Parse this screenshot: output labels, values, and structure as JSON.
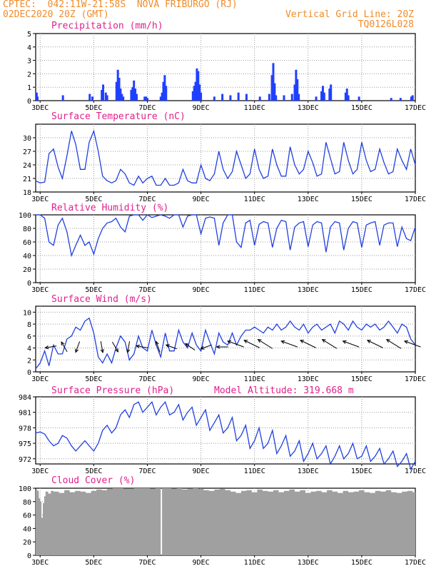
{
  "header": {
    "line1": "CPTEC:  042:11W-21:58S  NOVA FRIBURGO (RJ)",
    "line2_left": "02DEC2020 20Z (GMT)",
    "line2_right": "Vertical Grid Line: 20Z",
    "line3_right": "TQ0126L028"
  },
  "colors": {
    "header": "#f08c28",
    "title": "#e0208c",
    "series": "#2040e0",
    "bar": "#2040ff",
    "cloud": "#a0a0a0",
    "grid": "#999999"
  },
  "x_axis": {
    "start_day": 2.8333,
    "end_day": 17.0,
    "labels": [
      "3DEC",
      "5DEC",
      "7DEC",
      "9DEC",
      "11DEC",
      "13DEC",
      "15DEC",
      "17DEC"
    ],
    "label_days": [
      3,
      5,
      7,
      9,
      11,
      13,
      15,
      17
    ]
  },
  "chart_data": [
    {
      "type": "bar",
      "id": "precip",
      "title": "Precipitation (mm/h)",
      "ylim": [
        0,
        5
      ],
      "yticks": [
        0,
        1,
        2,
        3,
        4,
        5
      ],
      "x": [
        2.87,
        2.9,
        3.85,
        4.85,
        4.95,
        5.3,
        5.35,
        5.45,
        5.5,
        5.85,
        5.9,
        5.95,
        6.0,
        6.05,
        6.1,
        6.4,
        6.45,
        6.5,
        6.55,
        6.6,
        6.9,
        6.95,
        7.0,
        7.5,
        7.55,
        7.6,
        7.65,
        7.7,
        8.7,
        8.75,
        8.8,
        8.85,
        8.9,
        8.95,
        9.0,
        9.5,
        9.8,
        10.1,
        10.4,
        10.7,
        11.2,
        11.55,
        11.65,
        11.7,
        11.75,
        11.8,
        12.1,
        12.4,
        12.5,
        12.55,
        12.6,
        12.65,
        13.3,
        13.5,
        13.55,
        13.6,
        13.8,
        13.85,
        14.4,
        14.45,
        14.5,
        14.9,
        16.1,
        16.45,
        16.85,
        16.9
      ],
      "values": [
        0.6,
        0.3,
        0.4,
        0.5,
        0.3,
        0.8,
        1.2,
        0.6,
        0.4,
        1.4,
        2.3,
        1.7,
        0.9,
        0.5,
        0.3,
        0.8,
        1.0,
        1.5,
        0.9,
        0.5,
        0.3,
        0.3,
        0.2,
        0.3,
        0.6,
        1.4,
        1.9,
        1.1,
        0.7,
        1.1,
        1.4,
        2.4,
        2.2,
        1.2,
        0.6,
        0.3,
        0.5,
        0.4,
        0.6,
        0.5,
        0.3,
        0.5,
        1.9,
        2.8,
        1.3,
        0.4,
        0.4,
        0.5,
        1.2,
        2.3,
        1.6,
        0.5,
        0.3,
        0.7,
        1.1,
        0.6,
        0.9,
        1.2,
        0.6,
        0.9,
        0.4,
        0.3,
        0.2,
        0.2,
        0.3,
        0.4
      ]
    },
    {
      "type": "line",
      "id": "temp",
      "title": "Surface Temperature (nC)",
      "ylim": [
        18,
        33
      ],
      "yticks": [
        18,
        21,
        24,
        27,
        30
      ],
      "x": [
        2.83,
        3.0,
        3.17,
        3.33,
        3.5,
        3.67,
        3.83,
        4.0,
        4.17,
        4.33,
        4.5,
        4.67,
        4.83,
        5.0,
        5.17,
        5.33,
        5.5,
        5.67,
        5.83,
        6.0,
        6.17,
        6.33,
        6.5,
        6.67,
        6.83,
        7.0,
        7.17,
        7.33,
        7.5,
        7.67,
        7.83,
        8.0,
        8.17,
        8.33,
        8.5,
        8.67,
        8.83,
        9.0,
        9.17,
        9.33,
        9.5,
        9.67,
        9.83,
        10.0,
        10.17,
        10.33,
        10.5,
        10.67,
        10.83,
        11.0,
        11.17,
        11.33,
        11.5,
        11.67,
        11.83,
        12.0,
        12.17,
        12.33,
        12.5,
        12.67,
        12.83,
        13.0,
        13.17,
        13.33,
        13.5,
        13.67,
        13.83,
        14.0,
        14.17,
        14.33,
        14.5,
        14.67,
        14.83,
        15.0,
        15.17,
        15.33,
        15.5,
        15.67,
        15.83,
        16.0,
        16.17,
        16.33,
        16.5,
        16.67,
        16.83,
        17.0
      ],
      "values": [
        20.5,
        20.0,
        20.2,
        26.5,
        27.5,
        23.5,
        21.0,
        26.0,
        31.5,
        28.5,
        23.0,
        23.0,
        29.0,
        31.5,
        27.0,
        21.5,
        20.5,
        20.0,
        20.5,
        23.0,
        22.0,
        20.0,
        19.5,
        21.5,
        20.0,
        21.0,
        21.5,
        19.5,
        19.5,
        21.0,
        19.5,
        19.5,
        20.0,
        23.0,
        20.5,
        20.0,
        20.0,
        24.0,
        21.0,
        20.5,
        22.0,
        27.0,
        23.0,
        21.0,
        22.5,
        27.0,
        24.0,
        21.0,
        22.0,
        27.5,
        23.0,
        21.0,
        21.5,
        27.5,
        24.0,
        21.5,
        21.5,
        28.0,
        24.0,
        22.0,
        23.0,
        27.0,
        24.5,
        21.5,
        22.0,
        29.0,
        25.5,
        22.0,
        22.5,
        29.0,
        25.0,
        22.0,
        23.0,
        29.0,
        25.0,
        22.5,
        23.0,
        27.5,
        24.5,
        22.0,
        22.5,
        27.5,
        25.0,
        23.0,
        27.5,
        24.0
      ]
    },
    {
      "type": "line",
      "id": "rh",
      "title": "Relative Humidity (%)",
      "ylim": [
        0,
        100
      ],
      "yticks": [
        0,
        20,
        40,
        60,
        80,
        100
      ],
      "x": [
        2.83,
        3.0,
        3.17,
        3.33,
        3.5,
        3.67,
        3.83,
        4.0,
        4.17,
        4.33,
        4.5,
        4.67,
        4.83,
        5.0,
        5.17,
        5.33,
        5.5,
        5.67,
        5.83,
        6.0,
        6.17,
        6.33,
        6.5,
        6.67,
        6.83,
        7.0,
        7.17,
        7.33,
        7.5,
        7.67,
        7.83,
        8.0,
        8.17,
        8.33,
        8.5,
        8.67,
        8.83,
        9.0,
        9.17,
        9.33,
        9.5,
        9.67,
        9.83,
        10.0,
        10.17,
        10.33,
        10.5,
        10.67,
        10.83,
        11.0,
        11.17,
        11.33,
        11.5,
        11.67,
        11.83,
        12.0,
        12.17,
        12.33,
        12.5,
        12.67,
        12.83,
        13.0,
        13.17,
        13.33,
        13.5,
        13.67,
        13.83,
        14.0,
        14.17,
        14.33,
        14.5,
        14.67,
        14.83,
        15.0,
        15.17,
        15.33,
        15.5,
        15.67,
        15.83,
        16.0,
        16.17,
        16.33,
        16.5,
        16.67,
        16.83,
        17.0
      ],
      "values": [
        100,
        100,
        95,
        60,
        55,
        85,
        95,
        75,
        40,
        55,
        70,
        55,
        60,
        42,
        65,
        80,
        88,
        90,
        95,
        82,
        75,
        98,
        100,
        100,
        92,
        100,
        96,
        98,
        100,
        98,
        95,
        100,
        100,
        82,
        98,
        100,
        100,
        72,
        95,
        97,
        95,
        55,
        88,
        100,
        100,
        60,
        52,
        88,
        92,
        55,
        86,
        90,
        88,
        52,
        80,
        92,
        90,
        48,
        82,
        88,
        90,
        53,
        85,
        90,
        88,
        45,
        82,
        90,
        88,
        48,
        80,
        90,
        88,
        52,
        85,
        88,
        90,
        55,
        85,
        88,
        88,
        53,
        82,
        65,
        62,
        82
      ]
    },
    {
      "type": "line",
      "id": "wind",
      "title": "Surface Wind (m/s)",
      "ylim": [
        0,
        11
      ],
      "yticks": [
        0,
        2,
        4,
        6,
        8,
        10
      ],
      "x": [
        2.83,
        3.0,
        3.17,
        3.33,
        3.5,
        3.67,
        3.83,
        4.0,
        4.17,
        4.33,
        4.5,
        4.67,
        4.83,
        5.0,
        5.17,
        5.33,
        5.5,
        5.67,
        5.83,
        6.0,
        6.17,
        6.33,
        6.5,
        6.67,
        6.83,
        7.0,
        7.17,
        7.33,
        7.5,
        7.67,
        7.83,
        8.0,
        8.17,
        8.33,
        8.5,
        8.67,
        8.83,
        9.0,
        9.17,
        9.33,
        9.5,
        9.67,
        9.83,
        10.0,
        10.17,
        10.33,
        10.5,
        10.67,
        10.83,
        11.0,
        11.17,
        11.33,
        11.5,
        11.67,
        11.83,
        12.0,
        12.17,
        12.33,
        12.5,
        12.67,
        12.83,
        13.0,
        13.17,
        13.33,
        13.5,
        13.67,
        13.83,
        14.0,
        14.17,
        14.33,
        14.5,
        14.67,
        14.83,
        15.0,
        15.17,
        15.33,
        15.5,
        15.67,
        15.83,
        16.0,
        16.17,
        16.33,
        16.5,
        16.67,
        16.83,
        17.0
      ],
      "values": [
        0.5,
        1.5,
        3.5,
        1.0,
        4.5,
        3.0,
        3.0,
        5.5,
        6.0,
        7.5,
        7.0,
        8.5,
        9.0,
        6.5,
        2.5,
        1.5,
        3.0,
        1.5,
        4.0,
        6.0,
        5.0,
        2.0,
        3.0,
        6.0,
        4.0,
        3.5,
        7.0,
        4.5,
        2.5,
        6.5,
        3.5,
        3.5,
        7.0,
        5.0,
        4.0,
        6.5,
        4.5,
        3.5,
        7.0,
        5.0,
        3.0,
        6.5,
        5.0,
        4.5,
        6.5,
        4.5,
        6.0,
        7.0,
        7.0,
        7.5,
        7.0,
        6.5,
        7.5,
        7.0,
        8.0,
        7.0,
        7.5,
        8.5,
        7.5,
        7.0,
        8.0,
        6.5,
        7.5,
        8.0,
        7.0,
        7.5,
        8.0,
        6.5,
        8.5,
        8.0,
        7.0,
        8.5,
        7.5,
        7.0,
        8.0,
        7.5,
        8.0,
        7.0,
        7.5,
        8.5,
        7.5,
        6.5,
        8.0,
        7.5,
        5.5,
        4.5
      ],
      "barbs_x": [
        3.4,
        3.9,
        4.4,
        5.3,
        5.8,
        6.3,
        6.8,
        7.4,
        7.9,
        8.6,
        9.2,
        9.8,
        10.3,
        10.9,
        11.4,
        12.3,
        13.0,
        13.8,
        14.6,
        15.5,
        16.2,
        16.9
      ]
    },
    {
      "type": "line",
      "id": "press",
      "title": "Surface Pressure (hPa)",
      "annotation": "Model Altitude: 319.668 m",
      "ylim": [
        971,
        984
      ],
      "yticks": [
        972,
        975,
        978,
        981,
        984
      ],
      "x": [
        2.83,
        3.0,
        3.17,
        3.33,
        3.5,
        3.67,
        3.83,
        4.0,
        4.17,
        4.33,
        4.5,
        4.67,
        4.83,
        5.0,
        5.17,
        5.33,
        5.5,
        5.67,
        5.83,
        6.0,
        6.17,
        6.33,
        6.5,
        6.67,
        6.83,
        7.0,
        7.17,
        7.33,
        7.5,
        7.67,
        7.83,
        8.0,
        8.17,
        8.33,
        8.5,
        8.67,
        8.83,
        9.0,
        9.17,
        9.33,
        9.5,
        9.67,
        9.83,
        10.0,
        10.17,
        10.33,
        10.5,
        10.67,
        10.83,
        11.0,
        11.17,
        11.33,
        11.5,
        11.67,
        11.83,
        12.0,
        12.17,
        12.33,
        12.5,
        12.67,
        12.83,
        13.0,
        13.17,
        13.33,
        13.5,
        13.67,
        13.83,
        14.0,
        14.17,
        14.33,
        14.5,
        14.67,
        14.83,
        15.0,
        15.17,
        15.33,
        15.5,
        15.67,
        15.83,
        16.0,
        16.17,
        16.33,
        16.5,
        16.67,
        16.83,
        17.0
      ],
      "values": [
        977.0,
        977.2,
        976.8,
        975.5,
        974.5,
        975.0,
        976.5,
        976.0,
        974.5,
        973.5,
        974.5,
        975.5,
        974.5,
        973.5,
        975.0,
        977.5,
        978.5,
        977.0,
        978.0,
        980.5,
        981.5,
        980.0,
        982.5,
        983.0,
        981.0,
        982.0,
        983.0,
        980.5,
        982.0,
        983.0,
        980.5,
        981.0,
        982.5,
        979.5,
        981.0,
        982.0,
        978.5,
        980.0,
        981.5,
        977.5,
        979.0,
        980.5,
        977.0,
        978.0,
        980.0,
        975.5,
        976.5,
        978.5,
        974.0,
        975.5,
        978.0,
        974.0,
        975.0,
        977.5,
        973.0,
        974.5,
        976.5,
        972.5,
        973.5,
        975.5,
        971.5,
        973.0,
        975.0,
        972.0,
        973.0,
        974.5,
        971.0,
        972.5,
        974.5,
        972.0,
        973.0,
        975.0,
        972.0,
        972.5,
        974.5,
        971.5,
        972.5,
        974.0,
        971.0,
        972.0,
        973.5,
        970.5,
        971.5,
        973.0,
        970.0,
        971.5
      ]
    },
    {
      "type": "area",
      "id": "cloud",
      "title": "Cloud Cover (%)",
      "ylim": [
        0,
        100
      ],
      "yticks": [
        0,
        20,
        40,
        60,
        80,
        100
      ],
      "x": [
        2.83,
        2.9,
        2.95,
        3.0,
        3.05,
        3.1,
        3.15,
        3.2,
        3.3,
        3.4,
        3.5,
        3.7,
        3.9,
        4.1,
        4.3,
        4.5,
        4.7,
        4.9,
        5.1,
        5.3,
        5.5,
        5.7,
        5.9,
        6.1,
        6.3,
        6.5,
        6.7,
        6.9,
        7.1,
        7.3,
        7.45,
        7.5,
        7.55,
        7.7,
        7.9,
        8.1,
        8.3,
        8.5,
        8.7,
        8.9,
        9.1,
        9.3,
        9.5,
        9.7,
        9.9,
        10.1,
        10.3,
        10.5,
        10.7,
        10.9,
        11.1,
        11.3,
        11.5,
        11.7,
        11.9,
        12.1,
        12.3,
        12.5,
        12.7,
        12.9,
        13.1,
        13.3,
        13.5,
        13.7,
        13.9,
        14.1,
        14.3,
        14.5,
        14.7,
        14.9,
        15.1,
        15.3,
        15.5,
        15.7,
        15.9,
        16.1,
        16.3,
        16.5,
        16.7,
        16.9,
        17.0
      ],
      "values": [
        98,
        96,
        85,
        80,
        56,
        78,
        88,
        95,
        92,
        96,
        95,
        93,
        97,
        94,
        96,
        95,
        93,
        96,
        98,
        97,
        99,
        100,
        100,
        99,
        99,
        100,
        100,
        100,
        99,
        100,
        100,
        0,
        100,
        100,
        99,
        100,
        98,
        99,
        100,
        99,
        97,
        96,
        98,
        99,
        97,
        95,
        93,
        96,
        97,
        94,
        98,
        96,
        95,
        97,
        94,
        96,
        98,
        95,
        97,
        93,
        95,
        96,
        94,
        97,
        95,
        93,
        96,
        94,
        95,
        97,
        94,
        93,
        96,
        95,
        97,
        94,
        93,
        95,
        96,
        94,
        95
      ]
    }
  ]
}
